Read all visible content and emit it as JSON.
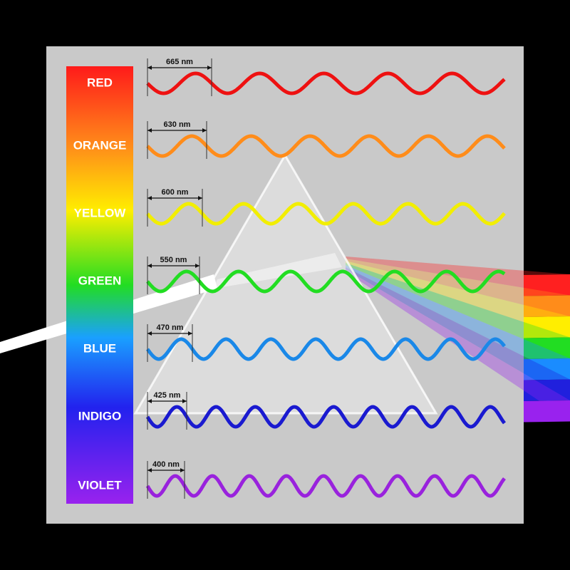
{
  "bands": [
    {
      "label": "RED",
      "wavelength": "665 nm"
    },
    {
      "label": "ORANGE",
      "wavelength": "630 nm"
    },
    {
      "label": "YELLOW",
      "wavelength": "600 nm"
    },
    {
      "label": "GREEN",
      "wavelength": "550 nm"
    },
    {
      "label": "BLUE",
      "wavelength": "470 nm"
    },
    {
      "label": "INDIGO",
      "wavelength": "425 nm"
    },
    {
      "label": "VIOLET",
      "wavelength": "400 nm"
    }
  ]
}
